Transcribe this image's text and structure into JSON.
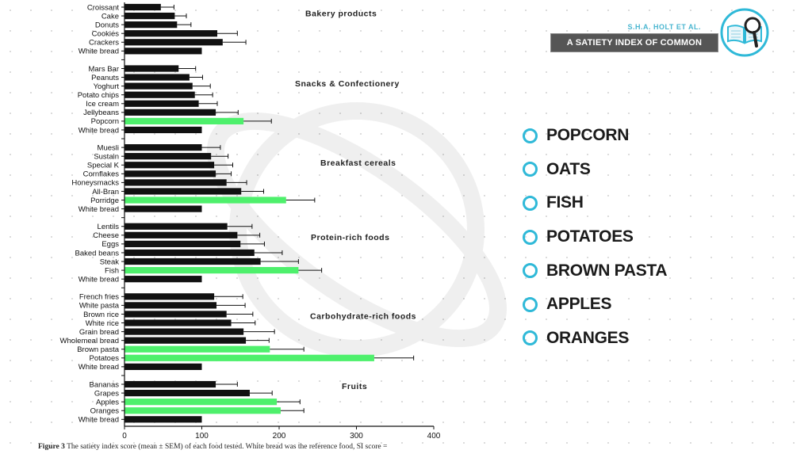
{
  "chart_data": {
    "type": "bar",
    "orientation": "horizontal",
    "xlim": [
      0,
      400
    ],
    "ticks": [
      0,
      100,
      200,
      300,
      400
    ],
    "grid": false,
    "groups": [
      {
        "name": "Bakery products",
        "items": [
          {
            "label": "Croissant",
            "value": 47,
            "sem": 17,
            "highlight": false
          },
          {
            "label": "Cake",
            "value": 65,
            "sem": 15,
            "highlight": false
          },
          {
            "label": "Donuts",
            "value": 68,
            "sem": 18,
            "highlight": false
          },
          {
            "label": "Cookies",
            "value": 120,
            "sem": 26,
            "highlight": false
          },
          {
            "label": "Crackers",
            "value": 127,
            "sem": 30,
            "highlight": false
          },
          {
            "label": "White bread",
            "value": 100,
            "sem": 0,
            "highlight": false
          }
        ]
      },
      {
        "name": "Snacks & Confectionery",
        "items": [
          {
            "label": "Mars Bar",
            "value": 70,
            "sem": 22,
            "highlight": false
          },
          {
            "label": "Peanuts",
            "value": 84,
            "sem": 17,
            "highlight": false
          },
          {
            "label": "Yoghurt",
            "value": 88,
            "sem": 23,
            "highlight": false
          },
          {
            "label": "Potato chips",
            "value": 91,
            "sem": 23,
            "highlight": false
          },
          {
            "label": "Ice cream",
            "value": 96,
            "sem": 24,
            "highlight": false
          },
          {
            "label": "Jellybeans",
            "value": 118,
            "sem": 29,
            "highlight": false
          },
          {
            "label": "Popcorn",
            "value": 154,
            "sem": 36,
            "highlight": true
          },
          {
            "label": "White bread",
            "value": 100,
            "sem": 0,
            "highlight": false
          }
        ]
      },
      {
        "name": "Breakfast cereals",
        "items": [
          {
            "label": "Muesli",
            "value": 100,
            "sem": 24,
            "highlight": false
          },
          {
            "label": "Sustain",
            "value": 112,
            "sem": 22,
            "highlight": false
          },
          {
            "label": "Special K",
            "value": 116,
            "sem": 24,
            "highlight": false
          },
          {
            "label": "Cornflakes",
            "value": 118,
            "sem": 20,
            "highlight": false
          },
          {
            "label": "Honeysmacks",
            "value": 132,
            "sem": 26,
            "highlight": false
          },
          {
            "label": "All-Bran",
            "value": 151,
            "sem": 29,
            "highlight": false
          },
          {
            "label": "Porridge",
            "value": 209,
            "sem": 37,
            "highlight": true
          },
          {
            "label": "White bread",
            "value": 100,
            "sem": 0,
            "highlight": false
          }
        ]
      },
      {
        "name": "Protein-rich foods",
        "items": [
          {
            "label": "Lentils",
            "value": 133,
            "sem": 32,
            "highlight": false
          },
          {
            "label": "Cheese",
            "value": 146,
            "sem": 29,
            "highlight": false
          },
          {
            "label": "Eggs",
            "value": 150,
            "sem": 31,
            "highlight": false
          },
          {
            "label": "Baked beans",
            "value": 168,
            "sem": 36,
            "highlight": false
          },
          {
            "label": "Steak",
            "value": 176,
            "sem": 49,
            "highlight": false
          },
          {
            "label": "Fish",
            "value": 225,
            "sem": 30,
            "highlight": true
          },
          {
            "label": "White bread",
            "value": 100,
            "sem": 0,
            "highlight": false
          }
        ]
      },
      {
        "name": "Carbohydrate-rich foods",
        "items": [
          {
            "label": "French fries",
            "value": 116,
            "sem": 37,
            "highlight": false
          },
          {
            "label": "White pasta",
            "value": 119,
            "sem": 37,
            "highlight": false
          },
          {
            "label": "Brown rice",
            "value": 132,
            "sem": 34,
            "highlight": false
          },
          {
            "label": "White rice",
            "value": 138,
            "sem": 31,
            "highlight": false
          },
          {
            "label": "Grain bread",
            "value": 154,
            "sem": 40,
            "highlight": false
          },
          {
            "label": "Wholemeal bread",
            "value": 157,
            "sem": 30,
            "highlight": false
          },
          {
            "label": "Brown pasta",
            "value": 188,
            "sem": 44,
            "highlight": true
          },
          {
            "label": "Potatoes",
            "value": 323,
            "sem": 51,
            "highlight": true
          },
          {
            "label": "White bread",
            "value": 100,
            "sem": 0,
            "highlight": false
          }
        ]
      },
      {
        "name": "Fruits",
        "items": [
          {
            "label": "Bananas",
            "value": 118,
            "sem": 28,
            "highlight": false
          },
          {
            "label": "Grapes",
            "value": 162,
            "sem": 29,
            "highlight": false
          },
          {
            "label": "Apples",
            "value": 197,
            "sem": 30,
            "highlight": true
          },
          {
            "label": "Oranges",
            "value": 202,
            "sem": 30,
            "highlight": true
          },
          {
            "label": "White bread",
            "value": 100,
            "sem": 0,
            "highlight": false
          }
        ]
      }
    ]
  },
  "colors": {
    "bar": "#111111",
    "highlight": "#4ef06c",
    "accent": "#2fb9d8"
  },
  "caption": {
    "label": "Figure 3",
    "text": "The satiety index score (mean ± SEM) of each food tested. White bread was the reference food, SI score ="
  },
  "brand": {
    "author": "S.H.A. HOLT ET AL.",
    "title": "A SATIETY INDEX OF COMMON FOODS",
    "logo_icon": "book-magnifier-icon"
  },
  "food_list": [
    "POPCORN",
    "OATS",
    "FISH",
    "POTATOES",
    "BROWN PASTA",
    "APPLES",
    "ORANGES"
  ]
}
